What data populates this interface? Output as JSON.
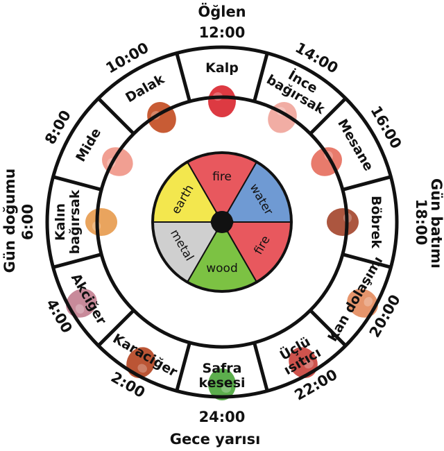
{
  "corners": {
    "top": "Öğlen",
    "bottom": "Gece yarısı",
    "left": "Gün doğumu",
    "right": "Gün batımı"
  },
  "times": [
    "12:00",
    "14:00",
    "16:00",
    "18:00",
    "20:00",
    "22:00",
    "24:00",
    "2:00",
    "4:00",
    "6:00",
    "8:00",
    "10:00"
  ],
  "organs": [
    [
      "Kalp"
    ],
    [
      "İnce",
      "bağırsak"
    ],
    [
      "Mesane"
    ],
    [
      "Böbrek"
    ],
    [
      "Kan dolaşımı"
    ],
    [
      "Üçlü",
      "ısıtıcı"
    ],
    [
      "Safra",
      "kesesi"
    ],
    [
      "Karaciğer"
    ],
    [
      "Akciğer"
    ],
    [
      "Kalın",
      "bağırsak"
    ],
    [
      "Mide"
    ],
    [
      "Dalak"
    ]
  ],
  "elements": [
    {
      "name": "fire",
      "color": "#e8585e"
    },
    {
      "name": "water",
      "color": "#6f9ad3"
    },
    {
      "name": "fire",
      "color": "#e8585e"
    },
    {
      "name": "wood",
      "color": "#7cc243"
    },
    {
      "name": "metal",
      "color": "#cfcfcf"
    },
    {
      "name": "earth",
      "color": "#f3e74e"
    }
  ],
  "organ_colors": [
    "#d9252e",
    "#f0a49a",
    "#e56d5c",
    "#a3442a",
    "#e38a5c",
    "#c9403a",
    "#4aa53a",
    "#b4431f",
    "#c27d8f",
    "#e79a4c",
    "#f09586",
    "#c24a1f"
  ],
  "organ_icons": [
    "heart-icon",
    "small-intestine-icon",
    "bladder-icon",
    "kidneys-icon",
    "circulation-icon",
    "triple-burner-icon",
    "gallbladder-icon",
    "liver-icon",
    "lungs-icon",
    "large-intestine-icon",
    "stomach-icon",
    "spleen-icon"
  ]
}
